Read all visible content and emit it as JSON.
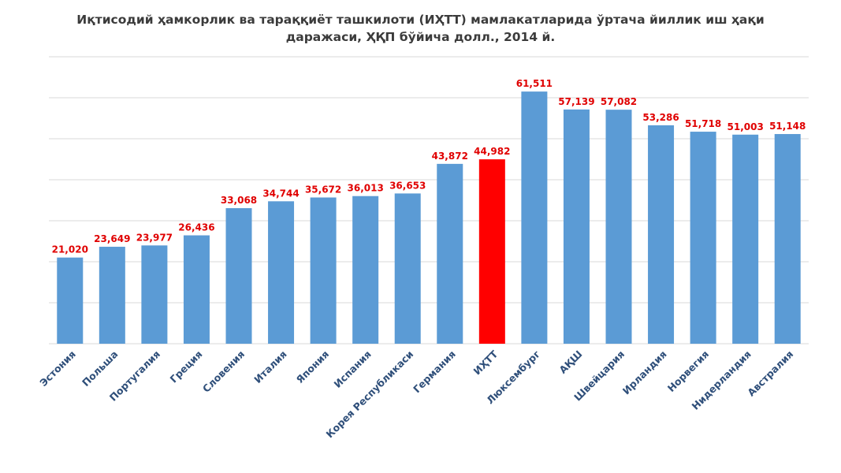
{
  "chart_data": {
    "type": "bar",
    "title_lines": [
      "Иқтисодий ҳамкорлик ва тараққиёт ташкилоти (ИҲТТ) мамлакатларида ўртача йиллик иш ҳақи",
      "даражаси, ҲҚП бўйича долл., 2014 й."
    ],
    "categories": [
      "Эстония",
      "Польша",
      "Португалия",
      "Греция",
      "Словения",
      "Италия",
      "Япония",
      "Испания",
      "Корея Республикаси",
      "Германия",
      "ИҲТТ",
      "Люксембург",
      "АҚШ",
      "Швейцария",
      "Ирландия",
      "Норвегия",
      "Нидерландия",
      "Австралия"
    ],
    "values": [
      21020,
      23649,
      23977,
      26436,
      33068,
      34744,
      35672,
      36013,
      36653,
      43872,
      44982,
      61511,
      57139,
      57082,
      53286,
      51718,
      51003,
      51148
    ],
    "value_labels": [
      "21,020",
      "23,649",
      "23,977",
      "26,436",
      "33,068",
      "34,744",
      "35,672",
      "36,013",
      "36,653",
      "43,872",
      "44,982",
      "61,511",
      "57,139",
      "57,082",
      "53,286",
      "51,718",
      "51,003",
      "51,148"
    ],
    "highlight_category": "ИҲТТ",
    "colors": {
      "bar": "#5b9bd5",
      "highlight": "#ff0000",
      "value_label": "#e00000",
      "category_label": "#2f4f7a",
      "grid": "#d9d9d9"
    },
    "ylim": [
      0,
      70000
    ],
    "grid": true,
    "xlabel": "",
    "ylabel": ""
  }
}
